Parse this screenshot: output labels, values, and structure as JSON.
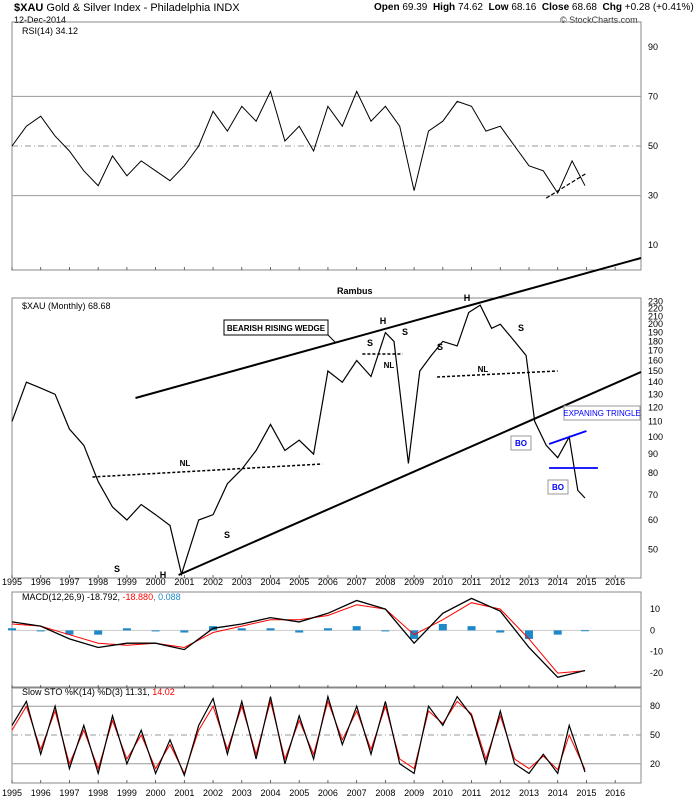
{
  "header": {
    "symbol": "$XAU",
    "name": "Gold & Silver Index - Philadelphia INDX",
    "date": "12-Dec-2014",
    "open_label": "Open",
    "open": "69.39",
    "high_label": "High",
    "high": "74.62",
    "low_label": "Low",
    "low": "68.16",
    "close_label": "Close",
    "close": "68.68",
    "chg_label": "Chg",
    "chg": "+0.28 (+0.41%)",
    "credit": "© StockCharts.com"
  },
  "panels": {
    "rsi_label": "RSI(14) 34.12",
    "main_label": "$XAU (Monthly) 68.68",
    "author": "Rambus",
    "macd_label_prefix": "MACD(12,26,9) -18.792, ",
    "macd_signal_val": "-18.880",
    "macd_hist_val": ", 0.088",
    "sto_label_prefix": "Slow STO %K(14) %D(3) 11.31, ",
    "sto_d_val": "14.02"
  },
  "annotations": {
    "wedge": "BEARISH RISING WEDGE",
    "expanding": "EXPANING TRINGLE",
    "bo1": "BO",
    "bo2": "BO",
    "nl": "NL",
    "h": "H",
    "s": "S"
  },
  "colors": {
    "price": "#000000",
    "signal": "#ff0000",
    "histogram": "#1e88c8",
    "trend": "#000000",
    "triangle": "#0000ff",
    "grid": "#999999"
  },
  "chart_data": [
    {
      "type": "line",
      "panel": "rsi",
      "title": "RSI(14) 34.12",
      "yticks": [
        10,
        30,
        50,
        70,
        90
      ],
      "ylim": [
        0,
        100
      ],
      "x": [
        1995.0,
        1995.5,
        1996.0,
        1996.5,
        1997.0,
        1997.5,
        1998.0,
        1998.5,
        1999.0,
        1999.5,
        2000.0,
        2000.5,
        2001.0,
        2001.5,
        2002.0,
        2002.5,
        2003.0,
        2003.5,
        2004.0,
        2004.5,
        2005.0,
        2005.5,
        2006.0,
        2006.5,
        2007.0,
        2007.5,
        2008.0,
        2008.5,
        2009.0,
        2009.5,
        2010.0,
        2010.5,
        2011.0,
        2011.5,
        2012.0,
        2012.5,
        2013.0,
        2013.5,
        2014.0,
        2014.5,
        2014.95
      ],
      "values": [
        50,
        58,
        62,
        54,
        48,
        40,
        34,
        46,
        38,
        44,
        40,
        36,
        42,
        50,
        64,
        56,
        66,
        60,
        72,
        52,
        58,
        48,
        66,
        58,
        72,
        60,
        66,
        58,
        32,
        56,
        60,
        68,
        66,
        56,
        58,
        50,
        42,
        40,
        31,
        44,
        34
      ]
    },
    {
      "type": "line",
      "panel": "price",
      "title": "$XAU (Monthly) 68.68",
      "yscale": "log",
      "yticks": [
        50,
        60,
        70,
        80,
        90,
        100,
        110,
        120,
        130,
        140,
        150,
        160,
        170,
        180,
        190,
        200,
        210,
        220,
        230
      ],
      "ylim": [
        42,
        235
      ],
      "x": [
        1995.0,
        1995.5,
        1996.0,
        1996.5,
        1997.0,
        1997.5,
        1998.0,
        1998.5,
        1999.0,
        1999.5,
        2000.0,
        2000.5,
        2000.9,
        2001.5,
        2002.0,
        2002.5,
        2003.0,
        2003.5,
        2004.0,
        2004.5,
        2005.0,
        2005.5,
        2006.0,
        2006.5,
        2007.0,
        2007.5,
        2008.0,
        2008.3,
        2008.8,
        2009.2,
        2009.6,
        2010.0,
        2010.5,
        2010.9,
        2011.3,
        2011.7,
        2012.0,
        2012.5,
        2012.9,
        2013.2,
        2013.6,
        2014.0,
        2014.4,
        2014.7,
        2014.95
      ],
      "values": [
        110,
        140,
        135,
        130,
        105,
        95,
        76,
        65,
        60,
        66,
        62,
        58,
        43,
        60,
        62,
        75,
        82,
        92,
        108,
        92,
        98,
        90,
        150,
        140,
        160,
        145,
        190,
        180,
        85,
        150,
        165,
        180,
        175,
        215,
        225,
        195,
        200,
        180,
        165,
        110,
        95,
        88,
        100,
        72,
        68.68
      ]
    },
    {
      "type": "line",
      "panel": "macd",
      "title": "MACD(12,26,9)",
      "yticks": [
        -20,
        -10,
        0,
        10
      ],
      "ylim": [
        -27,
        18
      ],
      "x": [
        1995,
        1996,
        1997,
        1998,
        1999,
        2000,
        2001,
        2002,
        2003,
        2004,
        2005,
        2006,
        2007,
        2008,
        2009,
        2010,
        2011,
        2012,
        2013,
        2014,
        2014.95
      ],
      "series": [
        {
          "name": "MACD",
          "values": [
            4,
            2,
            -4,
            -8,
            -6,
            -6,
            -9,
            1,
            3,
            6,
            4,
            8,
            14,
            10,
            -6,
            8,
            15,
            9,
            -8,
            -22,
            -18.792
          ]
        },
        {
          "name": "Signal",
          "values": [
            3,
            2,
            -2,
            -6,
            -7,
            -6,
            -8,
            -1,
            2,
            5,
            5,
            7,
            12,
            10,
            -2,
            5,
            13,
            10,
            -4,
            -20,
            -18.88
          ]
        },
        {
          "name": "Histogram",
          "values": [
            1,
            0,
            -2,
            -2,
            1,
            0,
            -1,
            2,
            1,
            1,
            -1,
            1,
            2,
            0,
            -4,
            3,
            2,
            -1,
            -4,
            -2,
            0.088
          ]
        }
      ]
    },
    {
      "type": "line",
      "panel": "stochastic",
      "title": "Slow STO %K(14) %D(3)",
      "yticks": [
        20,
        50,
        80
      ],
      "ylim": [
        0,
        100
      ],
      "x": [
        1995,
        1995.5,
        1996,
        1996.5,
        1997,
        1997.5,
        1998,
        1998.5,
        1999,
        1999.5,
        2000,
        2000.5,
        2001,
        2001.5,
        2002,
        2002.5,
        2003,
        2003.5,
        2004,
        2004.5,
        2005,
        2005.5,
        2006,
        2006.5,
        2007,
        2007.5,
        2008,
        2008.5,
        2009,
        2009.5,
        2010,
        2010.5,
        2011,
        2011.5,
        2012,
        2012.5,
        2013,
        2013.5,
        2014,
        2014.4,
        2014.95
      ],
      "series": [
        {
          "name": "%K",
          "values": [
            60,
            85,
            30,
            80,
            15,
            60,
            10,
            70,
            20,
            55,
            10,
            45,
            8,
            60,
            88,
            30,
            85,
            25,
            90,
            20,
            70,
            25,
            90,
            40,
            80,
            30,
            85,
            20,
            10,
            80,
            60,
            90,
            70,
            20,
            75,
            20,
            10,
            30,
            10,
            60,
            11.31
          ]
        },
        {
          "name": "%D",
          "values": [
            55,
            80,
            35,
            75,
            20,
            55,
            15,
            65,
            25,
            50,
            15,
            40,
            10,
            55,
            80,
            35,
            80,
            30,
            85,
            25,
            65,
            30,
            85,
            45,
            75,
            35,
            80,
            25,
            15,
            75,
            62,
            85,
            72,
            25,
            70,
            25,
            15,
            28,
            14,
            50,
            14.02
          ]
        }
      ]
    }
  ],
  "xaxis_years": [
    "1995",
    "1996",
    "1997",
    "1998",
    "1999",
    "2000",
    "2001",
    "2002",
    "2003",
    "2004",
    "2005",
    "2006",
    "2007",
    "2008",
    "2009",
    "2010",
    "2011",
    "2012",
    "2013",
    "2014",
    "2015",
    "2016"
  ]
}
